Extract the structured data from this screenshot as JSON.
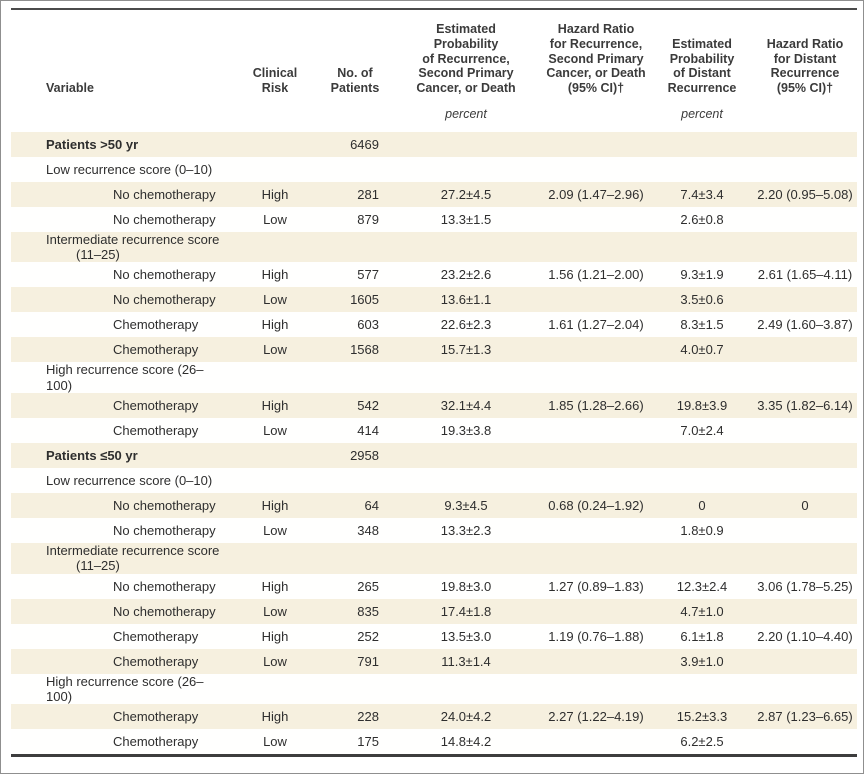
{
  "table": {
    "columns": [
      {
        "id": "variable",
        "label": "Variable",
        "unit": ""
      },
      {
        "id": "risk",
        "label": "Clinical\nRisk",
        "unit": ""
      },
      {
        "id": "n",
        "label": "No. of\nPatients",
        "unit": ""
      },
      {
        "id": "prob",
        "label": "Estimated\nProbability\nof Recurrence,\nSecond Primary\nCancer, or Death",
        "unit": "percent"
      },
      {
        "id": "hr",
        "label": "Hazard Ratio\nfor Recurrence,\nSecond Primary\nCancer, or Death\n(95% CI)†",
        "unit": ""
      },
      {
        "id": "prob_distant",
        "label": "Estimated\nProbability\nof Distant\nRecurrence",
        "unit": "percent"
      },
      {
        "id": "hr_distant",
        "label": "Hazard Ratio\nfor Distant\nRecurrence\n(95% CI)†",
        "unit": ""
      }
    ],
    "rows": [
      {
        "variable": "Patients >50 yr",
        "indent": "section",
        "bold": true,
        "risk": "",
        "n": "6469",
        "prob": "",
        "hr": "",
        "prob_distant": "",
        "hr_distant": ""
      },
      {
        "variable": "Low recurrence score (0–10)",
        "indent": "section",
        "bold": false,
        "risk": "",
        "n": "",
        "prob": "",
        "hr": "",
        "prob_distant": "",
        "hr_distant": ""
      },
      {
        "variable": "No chemotherapy",
        "indent": "item",
        "bold": false,
        "risk": "High",
        "n": "281",
        "prob": "27.2±4.5",
        "hr": "2.09 (1.47–2.96)",
        "prob_distant": "7.4±3.4",
        "hr_distant": "2.20 (0.95–5.08)"
      },
      {
        "variable": "No chemotherapy",
        "indent": "item",
        "bold": false,
        "risk": "Low",
        "n": "879",
        "prob": "13.3±1.5",
        "hr": "",
        "prob_distant": "2.6±0.8",
        "hr_distant": ""
      },
      {
        "variable": "Intermediate recurrence score",
        "variable_line2": "(11–25)",
        "indent": "section",
        "bold": false,
        "risk": "",
        "n": "",
        "prob": "",
        "hr": "",
        "prob_distant": "",
        "hr_distant": ""
      },
      {
        "variable": "No chemotherapy",
        "indent": "item",
        "bold": false,
        "risk": "High",
        "n": "577",
        "prob": "23.2±2.6",
        "hr": "1.56 (1.21–2.00)",
        "prob_distant": "9.3±1.9",
        "hr_distant": "2.61 (1.65–4.11)"
      },
      {
        "variable": "No chemotherapy",
        "indent": "item",
        "bold": false,
        "risk": "Low",
        "n": "1605",
        "prob": "13.6±1.1",
        "hr": "",
        "prob_distant": "3.5±0.6",
        "hr_distant": ""
      },
      {
        "variable": "Chemotherapy",
        "indent": "item",
        "bold": false,
        "risk": "High",
        "n": "603",
        "prob": "22.6±2.3",
        "hr": "1.61 (1.27–2.04)",
        "prob_distant": "8.3±1.5",
        "hr_distant": "2.49 (1.60–3.87)"
      },
      {
        "variable": "Chemotherapy",
        "indent": "item",
        "bold": false,
        "risk": "Low",
        "n": "1568",
        "prob": "15.7±1.3",
        "hr": "",
        "prob_distant": "4.0±0.7",
        "hr_distant": ""
      },
      {
        "variable": "High recurrence score (26–100)",
        "indent": "section",
        "bold": false,
        "risk": "",
        "n": "",
        "prob": "",
        "hr": "",
        "prob_distant": "",
        "hr_distant": ""
      },
      {
        "variable": "Chemotherapy",
        "indent": "item",
        "bold": false,
        "risk": "High",
        "n": "542",
        "prob": "32.1±4.4",
        "hr": "1.85 (1.28–2.66)",
        "prob_distant": "19.8±3.9",
        "hr_distant": "3.35 (1.82–6.14)"
      },
      {
        "variable": "Chemotherapy",
        "indent": "item",
        "bold": false,
        "risk": "Low",
        "n": "414",
        "prob": "19.3±3.8",
        "hr": "",
        "prob_distant": "7.0±2.4",
        "hr_distant": ""
      },
      {
        "variable": "Patients ≤50 yr",
        "indent": "section",
        "bold": true,
        "risk": "",
        "n": "2958",
        "prob": "",
        "hr": "",
        "prob_distant": "",
        "hr_distant": ""
      },
      {
        "variable": "Low recurrence score (0–10)",
        "indent": "section",
        "bold": false,
        "risk": "",
        "n": "",
        "prob": "",
        "hr": "",
        "prob_distant": "",
        "hr_distant": ""
      },
      {
        "variable": "No chemotherapy",
        "indent": "item",
        "bold": false,
        "risk": "High",
        "n": "64",
        "prob": "9.3±4.5",
        "hr": "0.68 (0.24–1.92)",
        "prob_distant": "0",
        "hr_distant": "0"
      },
      {
        "variable": "No chemotherapy",
        "indent": "item",
        "bold": false,
        "risk": "Low",
        "n": "348",
        "prob": "13.3±2.3",
        "hr": "",
        "prob_distant": "1.8±0.9",
        "hr_distant": ""
      },
      {
        "variable": "Intermediate recurrence score",
        "variable_line2": "(11–25)",
        "indent": "section",
        "bold": false,
        "risk": "",
        "n": "",
        "prob": "",
        "hr": "",
        "prob_distant": "",
        "hr_distant": ""
      },
      {
        "variable": "No chemotherapy",
        "indent": "item",
        "bold": false,
        "risk": "High",
        "n": "265",
        "prob": "19.8±3.0",
        "hr": "1.27 (0.89–1.83)",
        "prob_distant": "12.3±2.4",
        "hr_distant": "3.06 (1.78–5.25)"
      },
      {
        "variable": "No chemotherapy",
        "indent": "item",
        "bold": false,
        "risk": "Low",
        "n": "835",
        "prob": "17.4±1.8",
        "hr": "",
        "prob_distant": "4.7±1.0",
        "hr_distant": ""
      },
      {
        "variable": "Chemotherapy",
        "indent": "item",
        "bold": false,
        "risk": "High",
        "n": "252",
        "prob": "13.5±3.0",
        "hr": "1.19 (0.76–1.88)",
        "prob_distant": "6.1±1.8",
        "hr_distant": "2.20 (1.10–4.40)"
      },
      {
        "variable": "Chemotherapy",
        "indent": "item",
        "bold": false,
        "risk": "Low",
        "n": "791",
        "prob": "11.3±1.4",
        "hr": "",
        "prob_distant": "3.9±1.0",
        "hr_distant": ""
      },
      {
        "variable": "High recurrence score (26–100)",
        "indent": "section",
        "bold": false,
        "risk": "",
        "n": "",
        "prob": "",
        "hr": "",
        "prob_distant": "",
        "hr_distant": ""
      },
      {
        "variable": "Chemotherapy",
        "indent": "item",
        "bold": false,
        "risk": "High",
        "n": "228",
        "prob": "24.0±4.2",
        "hr": "2.27 (1.22–4.19)",
        "prob_distant": "15.2±3.3",
        "hr_distant": "2.87 (1.23–6.65)"
      },
      {
        "variable": "Chemotherapy",
        "indent": "item",
        "bold": false,
        "risk": "Low",
        "n": "175",
        "prob": "14.8±4.2",
        "hr": "",
        "prob_distant": "6.2±2.5",
        "hr_distant": ""
      }
    ],
    "colors": {
      "row_shade": "#f6f0df",
      "rule_dark": "#3d3d3d",
      "text": "#2e2e2e"
    }
  }
}
